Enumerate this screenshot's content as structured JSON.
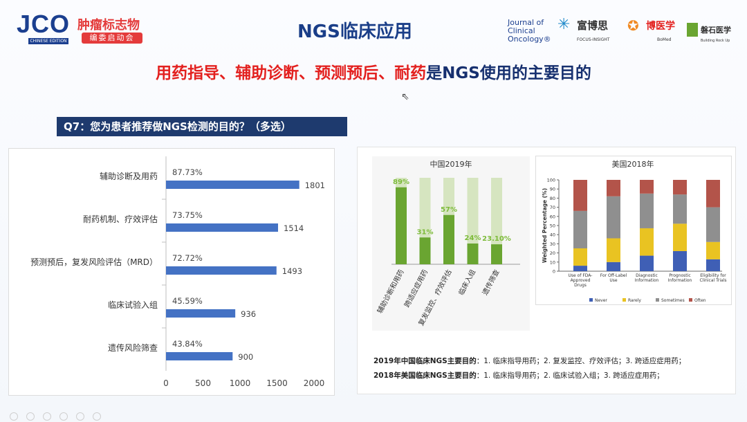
{
  "header": {
    "jco_logo": "JCO",
    "jco_edition": "CHINESE EDITION",
    "jco_cn_title": "肿瘤标志物",
    "jco_cn_sub": "编委启动会",
    "title": "NGS临床应用",
    "logos": {
      "journal": "Journal of Clinical Oncology®",
      "focus": "富博思",
      "focus_sub": "FOCUS-INSIGHT",
      "bomed": "博医学",
      "bomed_sub": "BoMed",
      "stone": "磐石医学",
      "stone_sub": "Building Rock Up"
    }
  },
  "subtitle": {
    "red_part": "用药指导、辅助诊断、预测预后、耐药",
    "blue_part": "是NGS使用的主要目的"
  },
  "question": "Q7：您为患者推荐做NGS检测的目的？（多选）",
  "colors": {
    "bar_blue": "#4472c4",
    "green_dark": "#6aa531",
    "green_light": "#d6e5c0",
    "green_label": "#7dbb3a",
    "us_never": "#3f5fb5",
    "us_rarely": "#e9c322",
    "us_sometimes": "#8f8f8f",
    "us_often": "#b3544a"
  },
  "chart_data": [
    {
      "type": "bar",
      "orientation": "horizontal",
      "categories": [
        "辅助诊断及用药",
        "耐药机制、疗效评估",
        "预测预后，复发风险评估（MRD）",
        "临床试验入组",
        "遗传风险筛查"
      ],
      "values": [
        1801,
        1514,
        1493,
        936,
        900
      ],
      "percent_labels": [
        "87.73%",
        "73.75%",
        "72.72%",
        "45.59%",
        "43.84%"
      ],
      "xlim": [
        0,
        2000
      ],
      "xticks": [
        "0",
        "500",
        "1000",
        "1500",
        "2000"
      ]
    },
    {
      "type": "bar",
      "title": "中国2019年",
      "categories": [
        "辅助诊断和用药",
        "跨适应症用药",
        "复发监控、疗效评估",
        "临床入组",
        "遗传筛查"
      ],
      "values": [
        89,
        31,
        57,
        24,
        23.1
      ],
      "value_labels": [
        "89%",
        "31%",
        "57%",
        "24%",
        "23.10%"
      ],
      "ylim": [
        0,
        100
      ]
    },
    {
      "type": "bar",
      "stacked": true,
      "title": "美国2018年",
      "ylabel": "Weighted Percentage (%)",
      "ylim": [
        0,
        100
      ],
      "yticks": [
        "0",
        "10",
        "20",
        "30",
        "40",
        "50",
        "60",
        "70",
        "80",
        "90",
        "100"
      ],
      "categories": [
        "Use of FDA-Approved Drugs",
        "For Off-Label Use",
        "Diagnostic Information",
        "Prognostic Information",
        "Eligibility for Clinical Trials"
      ],
      "series": [
        {
          "name": "Never",
          "values": [
            6,
            10,
            17,
            22,
            13
          ]
        },
        {
          "name": "Rarely",
          "values": [
            19,
            26,
            30,
            30,
            19
          ]
        },
        {
          "name": "Sometimes",
          "values": [
            41,
            46,
            38,
            32,
            38
          ]
        },
        {
          "name": "Often",
          "values": [
            34,
            18,
            15,
            16,
            30
          ]
        }
      ],
      "legend": "bottom"
    }
  ],
  "footnotes": [
    {
      "bold": "2019年中国临床NGS主要目的",
      "rest": "：1. 临床指导用药；2. 复发监控、疗效评估；3. 跨适应症用药；"
    },
    {
      "bold": "2018年美国临床NGS主要目的",
      "rest": "：1. 临床指导用药；2. 临床试验入组；3. 跨适应症用药；"
    }
  ]
}
